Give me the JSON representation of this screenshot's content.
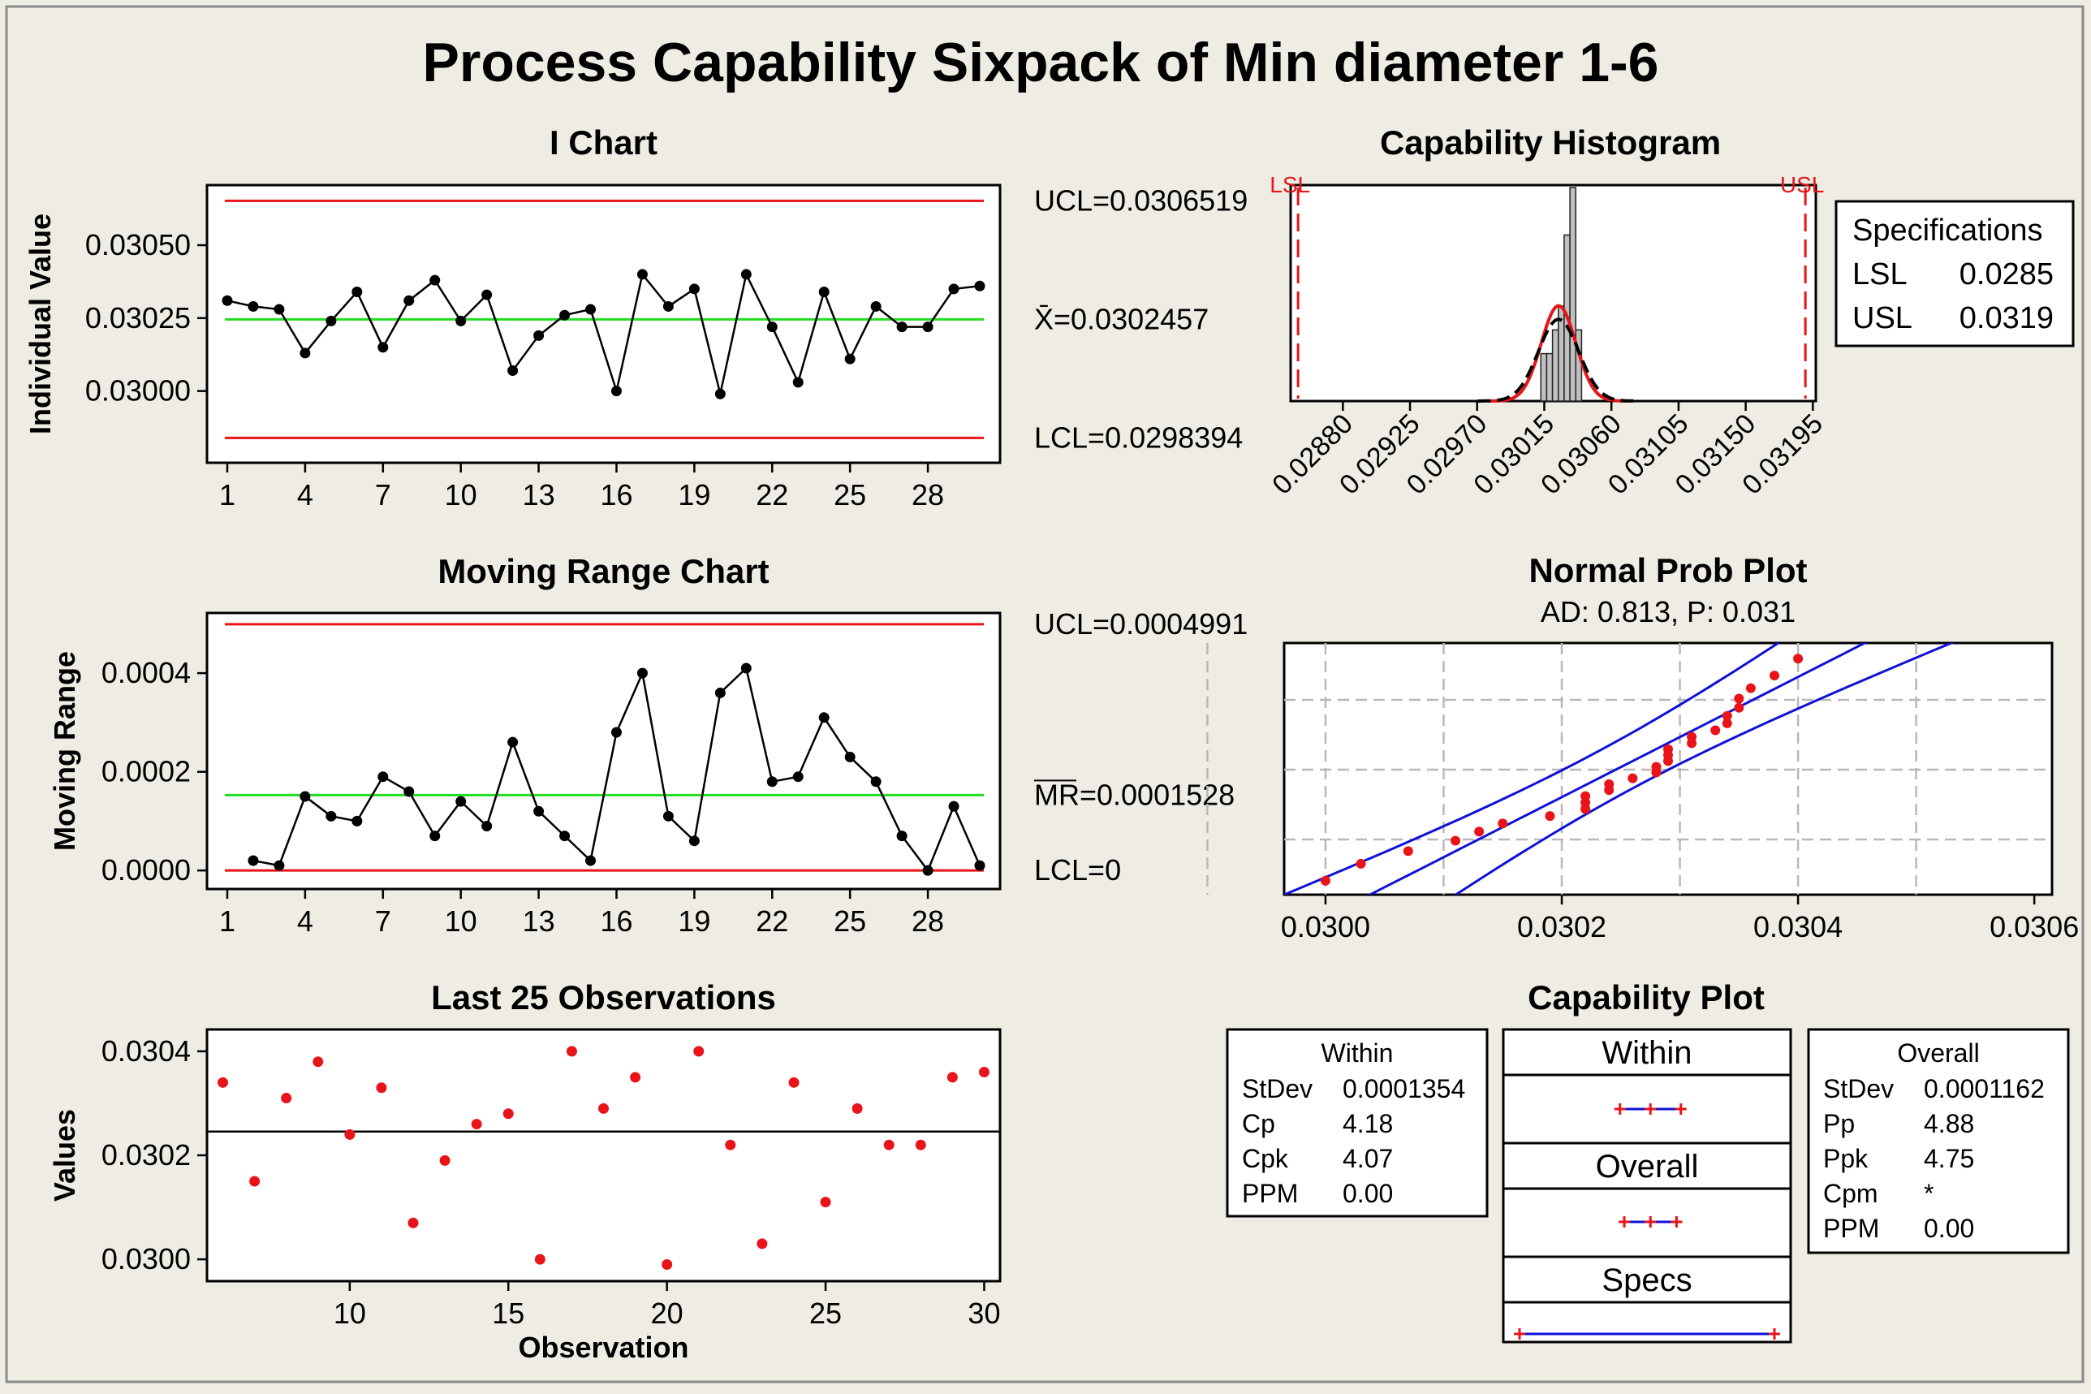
{
  "title": "Process Capability Sixpack of Min diameter 1-6",
  "chart_data": [
    {
      "type": "line",
      "title": "I Chart",
      "ylabel": "Individual Value",
      "x": [
        1,
        2,
        3,
        4,
        5,
        6,
        7,
        8,
        9,
        10,
        11,
        12,
        13,
        14,
        15,
        16,
        17,
        18,
        19,
        20,
        21,
        22,
        23,
        24,
        25,
        26,
        27,
        28,
        29,
        30
      ],
      "y": [
        0.03031,
        0.03029,
        0.03028,
        0.03013,
        0.03024,
        0.03034,
        0.03015,
        0.03031,
        0.03038,
        0.03024,
        0.03033,
        0.03007,
        0.03019,
        0.03026,
        0.03028,
        0.03,
        0.0304,
        0.03029,
        0.03035,
        0.02999,
        0.0304,
        0.03022,
        0.03003,
        0.03034,
        0.03011,
        0.03029,
        0.03022,
        0.03022,
        0.03035,
        0.03036
      ],
      "ylim": [
        0.029754,
        0.030706
      ],
      "xticks": [
        "1",
        "4",
        "7",
        "10",
        "13",
        "16",
        "19",
        "22",
        "25",
        "28"
      ],
      "yticks": [
        "0.03000",
        "0.03025",
        "0.03050"
      ],
      "ucl": 0.0306519,
      "center": 0.0302457,
      "lcl": 0.0298394,
      "ucl_label": "UCL=0.0306519",
      "center_label": "X̄=0.0302457",
      "lcl_label": "LCL=0.0298394"
    },
    {
      "type": "line",
      "title": "Moving Range Chart",
      "ylabel": "Moving Range",
      "x": [
        2,
        3,
        4,
        5,
        6,
        7,
        8,
        9,
        10,
        11,
        12,
        13,
        14,
        15,
        16,
        17,
        18,
        19,
        20,
        21,
        22,
        23,
        24,
        25,
        26,
        27,
        28,
        29,
        30
      ],
      "y": [
        2e-05,
        1e-05,
        0.00015,
        0.00011,
        0.0001,
        0.00019,
        0.00016,
        7e-05,
        0.00014,
        9e-05,
        0.00026,
        0.00012,
        7e-05,
        2e-05,
        0.00028,
        0.0004,
        0.00011,
        6e-05,
        0.00036,
        0.00041,
        0.00018,
        0.00019,
        0.00031,
        0.00023,
        0.00018,
        7e-05,
        0.0,
        0.00013,
        1e-05
      ],
      "ylim": [
        -3.76e-05,
        0.000522
      ],
      "xticks": [
        "1",
        "4",
        "7",
        "10",
        "13",
        "16",
        "19",
        "22",
        "25",
        "28"
      ],
      "yticks": [
        "0.0000",
        "0.0002",
        "0.0004"
      ],
      "ucl": 0.0004991,
      "center": 0.0001528,
      "lcl": 0,
      "ucl_label": "UCL=0.0004991",
      "center_label": "MR=0.0001528",
      "lcl_label": "LCL=0"
    },
    {
      "type": "scatter",
      "title": "Last 25 Observations",
      "xlabel": "Observation",
      "ylabel": "Values",
      "x": [
        6,
        7,
        8,
        9,
        10,
        11,
        12,
        13,
        14,
        15,
        16,
        17,
        18,
        19,
        20,
        21,
        22,
        23,
        24,
        25,
        26,
        27,
        28,
        29,
        30
      ],
      "y": [
        0.03034,
        0.03015,
        0.03031,
        0.03038,
        0.03024,
        0.03033,
        0.03007,
        0.03019,
        0.03026,
        0.03028,
        0.03,
        0.0304,
        0.03029,
        0.03035,
        0.02999,
        0.0304,
        0.03022,
        0.03003,
        0.03034,
        0.03011,
        0.03029,
        0.03022,
        0.03022,
        0.03035,
        0.03036
      ],
      "ylim": [
        0.029958,
        0.030442
      ],
      "xlim": [
        5.5,
        30.5
      ],
      "xticks": [
        "10",
        "15",
        "20",
        "25",
        "30"
      ],
      "yticks": [
        "0.0300",
        "0.0302",
        "0.0304"
      ],
      "center": 0.0302457
    },
    {
      "type": "bar",
      "title": "Capability Histogram",
      "bin_edges": [
        0.030127,
        0.030166,
        0.030205,
        0.030244,
        0.030283,
        0.030322,
        0.030361,
        0.0304
      ],
      "bin_counts": [
        2,
        2,
        3,
        4,
        7,
        9,
        3
      ],
      "xlim": [
        0.02845,
        0.03197
      ],
      "xticks": [
        "0.02880",
        "0.02925",
        "0.02970",
        "0.03015",
        "0.03060",
        "0.03105",
        "0.03150",
        "0.03195"
      ],
      "lsl_label": "LSL",
      "usl_label": "USL",
      "lsl": 0.0285,
      "usl": 0.0319,
      "specifications": {
        "header": "Specifications",
        "rows": [
          [
            "LSL",
            "0.0285"
          ],
          [
            "USL",
            "0.0319"
          ]
        ]
      }
    },
    {
      "type": "scatter",
      "title": "Normal Prob Plot",
      "subtitle": "AD: 0.813, P: 0.031",
      "xlim": [
        0.029965,
        0.030615
      ],
      "xticks": [
        "0.0300",
        "0.0302",
        "0.0304",
        "0.0306"
      ],
      "points": [
        0.02999,
        0.03,
        0.03003,
        0.03007,
        0.03011,
        0.03013,
        0.03015,
        0.03019,
        0.03022,
        0.03022,
        0.03022,
        0.03024,
        0.03024,
        0.03026,
        0.03028,
        0.03028,
        0.03029,
        0.03029,
        0.03029,
        0.03031,
        0.03031,
        0.03033,
        0.03034,
        0.03034,
        0.03035,
        0.03035,
        0.03036,
        0.03038,
        0.0304,
        0.0304
      ]
    },
    {
      "type": "table",
      "title": "Capability Plot",
      "within": {
        "header": "Within",
        "rows": [
          [
            "StDev",
            "0.0001354"
          ],
          [
            "Cp",
            "4.18"
          ],
          [
            "Cpk",
            "4.07"
          ],
          [
            "PPM",
            "0.00"
          ]
        ]
      },
      "overall": {
        "header": "Overall",
        "rows": [
          [
            "StDev",
            "0.0001162"
          ],
          [
            "Pp",
            "4.88"
          ],
          [
            "Ppk",
            "4.75"
          ],
          [
            "Cpm",
            "*"
          ],
          [
            "PPM",
            "0.00"
          ]
        ]
      },
      "interval_labels": [
        "Within",
        "Overall",
        "Specs"
      ]
    }
  ],
  "colors": {
    "background": "#efece3",
    "control_limit": "#e8141a",
    "center_line": "#22dd22",
    "points": "#e8141a",
    "fit_line": "#1010d8",
    "histogram_bar": "#c0c0c0"
  }
}
